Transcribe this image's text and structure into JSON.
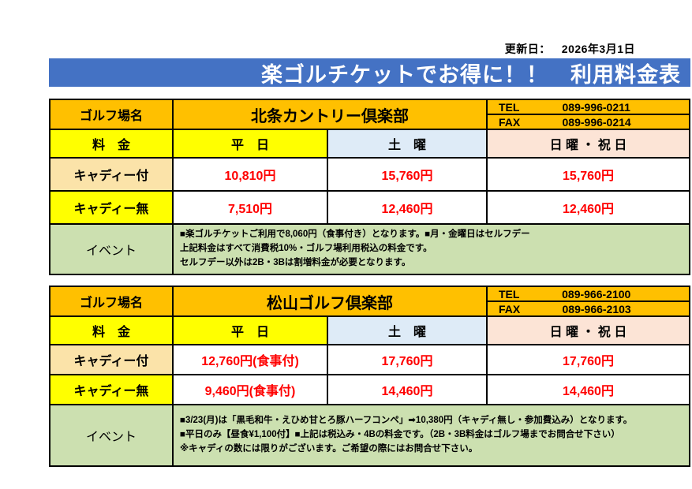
{
  "page": {
    "updated_label": "更新日：",
    "updated_date": "2026年3月1日",
    "banner_title": "楽ゴルチケットでお得に！！　利用料金表",
    "colors": {
      "banner_blue": "#4472C4",
      "header_gold": "#FFC000",
      "yellow": "#FFFF00",
      "saturday_blue": "#DEEBF7",
      "sunday_pink": "#FCE4D6",
      "caddy_tan": "#FBE3A9",
      "event_green": "#CCE0B0",
      "price_red": "#FF0000"
    }
  },
  "tables": [
    {
      "name_label": "ゴルフ場名",
      "course_name": "北条カントリー倶楽部",
      "tel_label": "TEL",
      "tel_number": "089-996-0211",
      "fax_label": "FAX",
      "fax_number": "089-996-0214",
      "fee_label": "料　金",
      "col_weekday": "平　日",
      "col_saturday": "土　曜",
      "col_sunday": "日 曜 ・ 祝 日",
      "rows": [
        {
          "label": "キャディー付",
          "weekday": "10,810円",
          "saturday": "15,760円",
          "sunday": "15,760円"
        },
        {
          "label": "キャディー無",
          "weekday": "7,510円",
          "saturday": "12,460円",
          "sunday": "12,460円"
        }
      ],
      "event_label": "イベント",
      "event_lines": [
        "■楽ゴルチケットご利用で8,060円（食事付き）となります。■月・金曜日はセルフデー",
        "上記料金はすべて消費税10%・ゴルフ場利用税込の料金です。",
        "セルフデー以外は2B・3Bは割増料金が必要となります。"
      ]
    },
    {
      "name_label": "ゴルフ場名",
      "course_name": "松山ゴルフ倶楽部",
      "tel_label": "TEL",
      "tel_number": "089-966-2100",
      "fax_label": "FAX",
      "fax_number": "089-966-2103",
      "fee_label": "料　金",
      "col_weekday": "平　日",
      "col_saturday": "土　曜",
      "col_sunday": "日 曜 ・ 祝 日",
      "rows": [
        {
          "label": "キャディー付",
          "weekday": "12,760円(食事付)",
          "saturday": "17,760円",
          "sunday": "17,760円"
        },
        {
          "label": "キャディー無",
          "weekday": "9,460円(食事付)",
          "saturday": "14,460円",
          "sunday": "14,460円"
        }
      ],
      "event_label": "イベント",
      "event_lines": [
        "■3/23(月)は「黒毛和牛・えひめ甘とろ豚ハーフコンペ」➡10,380円（キャディ無し・参加費込み）となります。",
        "■平日のみ【昼食¥1,100付】■上記は税込み・4Bの料金です。（2B・3B料金はゴルフ場までお問合せ下さい）",
        "※キャディの数には限りがございます。ご希望の際にはお問合せ下さい。"
      ]
    }
  ]
}
